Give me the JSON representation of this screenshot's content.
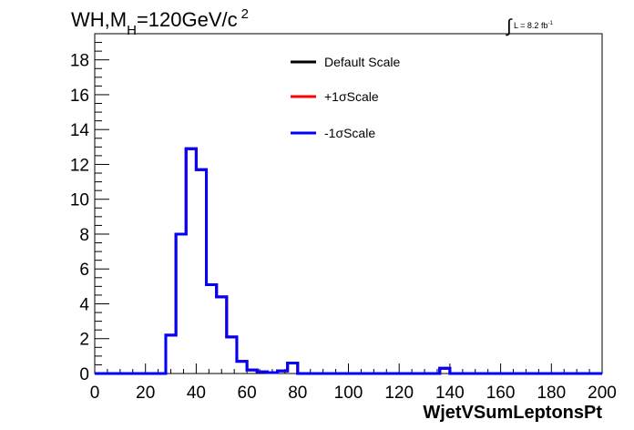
{
  "title": {
    "prefix": "WH,M",
    "subscript": "H",
    "suffix": "=120GeV/c",
    "superscript": "2"
  },
  "luminosity": {
    "symbol": "∫",
    "text": "L = 8.2 fb",
    "superscript": "-1"
  },
  "legend": [
    {
      "label": "Default Scale",
      "color": "#000000"
    },
    {
      "label": "+1σScale",
      "color": "#ff0000"
    },
    {
      "label": "-1σScale",
      "color": "#0000ff"
    }
  ],
  "chart_data": {
    "type": "line",
    "xlabel": "WjetVSumLeptonsPt",
    "ylabel": "",
    "xlim": [
      0,
      200
    ],
    "ylim": [
      0,
      19.5
    ],
    "x_ticks": [
      "0",
      "20",
      "40",
      "60",
      "80",
      "100",
      "120",
      "140",
      "160",
      "180",
      "200"
    ],
    "y_ticks": [
      "0",
      "2",
      "4",
      "6",
      "8",
      "10",
      "12",
      "14",
      "16",
      "18"
    ],
    "bin_edges": [
      0,
      4,
      8,
      12,
      16,
      20,
      24,
      28,
      32,
      36,
      40,
      44,
      48,
      52,
      56,
      60,
      64,
      68,
      72,
      76,
      80,
      84,
      88,
      92,
      96,
      100,
      104,
      108,
      112,
      116,
      120,
      124,
      128,
      132,
      136,
      140,
      144,
      148,
      152,
      156,
      160,
      164,
      168,
      172,
      176,
      180,
      184,
      188,
      192,
      196,
      200
    ],
    "series": [
      {
        "name": "Default Scale",
        "color": "#000000",
        "values": [
          0,
          0,
          0,
          0,
          0,
          0,
          0,
          2.2,
          8.0,
          12.9,
          11.7,
          5.1,
          4.4,
          2.1,
          0.7,
          0.2,
          0.1,
          0.05,
          0.15,
          0.6,
          0,
          0,
          0,
          0,
          0,
          0,
          0,
          0,
          0,
          0,
          0,
          0,
          0,
          0,
          0.3,
          0,
          0,
          0,
          0,
          0,
          0,
          0,
          0,
          0,
          0,
          0,
          0,
          0,
          0,
          0
        ]
      },
      {
        "name": "+1σScale",
        "color": "#ff0000",
        "values": [
          0,
          0,
          0,
          0,
          0,
          0,
          0,
          2.2,
          8.0,
          12.9,
          11.7,
          5.1,
          4.4,
          2.1,
          0.7,
          0.2,
          0.1,
          0.05,
          0.15,
          0.6,
          0,
          0,
          0,
          0,
          0,
          0,
          0,
          0,
          0,
          0,
          0,
          0,
          0,
          0,
          0.3,
          0,
          0,
          0,
          0,
          0,
          0,
          0,
          0,
          0,
          0,
          0,
          0,
          0,
          0,
          0
        ]
      },
      {
        "name": "-1σScale",
        "color": "#0000ff",
        "values": [
          0,
          0,
          0,
          0,
          0,
          0,
          0,
          2.2,
          8.0,
          12.9,
          11.7,
          5.1,
          4.4,
          2.1,
          0.7,
          0.2,
          0.1,
          0.05,
          0.15,
          0.6,
          0,
          0,
          0,
          0,
          0,
          0,
          0,
          0,
          0,
          0,
          0,
          0,
          0,
          0,
          0.3,
          0,
          0,
          0,
          0,
          0,
          0,
          0,
          0,
          0,
          0,
          0,
          0,
          0,
          0,
          0
        ]
      }
    ]
  }
}
